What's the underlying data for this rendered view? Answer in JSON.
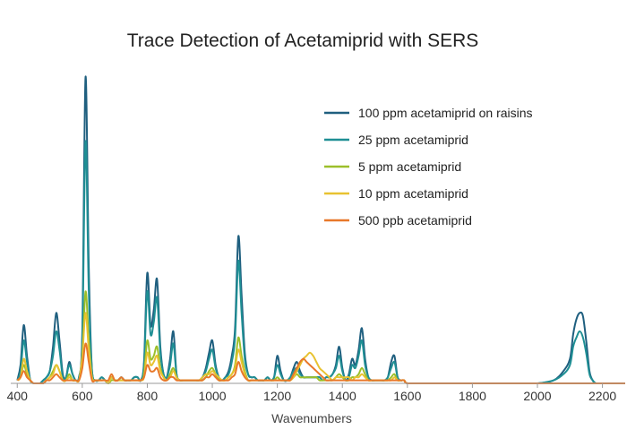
{
  "chart_data": {
    "type": "line",
    "title": "Trace Detection of Acetamiprid with SERS",
    "xlabel": "Wavenumbers",
    "ylabel": "",
    "xlim": [
      380,
      2270
    ],
    "ylim": [
      0,
      100
    ],
    "x_ticks": [
      400,
      600,
      800,
      1000,
      1200,
      1400,
      1600,
      1800,
      2000,
      2200
    ],
    "grid": false,
    "legend_position": "top-right",
    "x": [
      400,
      410,
      420,
      430,
      440,
      450,
      460,
      470,
      480,
      490,
      500,
      510,
      520,
      530,
      540,
      550,
      560,
      570,
      580,
      590,
      600,
      610,
      620,
      630,
      640,
      650,
      660,
      670,
      680,
      690,
      700,
      710,
      720,
      730,
      740,
      750,
      760,
      770,
      780,
      790,
      800,
      810,
      820,
      830,
      840,
      850,
      860,
      870,
      880,
      890,
      900,
      910,
      920,
      930,
      940,
      950,
      960,
      970,
      980,
      990,
      1000,
      1010,
      1020,
      1030,
      1040,
      1050,
      1060,
      1070,
      1080,
      1090,
      1100,
      1110,
      1120,
      1130,
      1140,
      1150,
      1160,
      1170,
      1180,
      1190,
      1200,
      1210,
      1220,
      1230,
      1240,
      1250,
      1260,
      1270,
      1280,
      1290,
      1300,
      1310,
      1320,
      1330,
      1340,
      1350,
      1360,
      1370,
      1380,
      1390,
      1400,
      1410,
      1420,
      1430,
      1440,
      1450,
      1460,
      1470,
      1480,
      1490,
      1500,
      1510,
      1520,
      1530,
      1540,
      1550,
      1560,
      1570,
      1580,
      1590,
      1600,
      1650,
      1700,
      1750,
      1800,
      1850,
      1900,
      1950,
      2000,
      2050,
      2080,
      2100,
      2110,
      2120,
      2130,
      2140,
      2150,
      2160,
      2170,
      2180,
      2200,
      2250,
      2270
    ],
    "series": [
      {
        "name": "100 ppm acetamiprid on raisins",
        "color": "#1f5f7f",
        "values": [
          1,
          6,
          19,
          9,
          1,
          0,
          0,
          0,
          1,
          2,
          4,
          12,
          23,
          14,
          3,
          2,
          7,
          3,
          1,
          2,
          17,
          100,
          38,
          4,
          1,
          1,
          2,
          1,
          0,
          2,
          1,
          1,
          2,
          1,
          1,
          1,
          2,
          2,
          1,
          7,
          36,
          19,
          24,
          34,
          12,
          3,
          2,
          8,
          17,
          3,
          1,
          1,
          1,
          1,
          1,
          1,
          1,
          2,
          5,
          10,
          14,
          6,
          2,
          1,
          2,
          4,
          9,
          18,
          48,
          29,
          10,
          3,
          2,
          2,
          1,
          1,
          1,
          2,
          1,
          2,
          9,
          4,
          1,
          1,
          2,
          5,
          7,
          4,
          2,
          2,
          2,
          2,
          2,
          2,
          1,
          2,
          2,
          3,
          6,
          12,
          5,
          1,
          3,
          8,
          6,
          11,
          18,
          8,
          2,
          1,
          1,
          1,
          1,
          1,
          2,
          7,
          9,
          2,
          1,
          1,
          0,
          0,
          0,
          0,
          0,
          0,
          0,
          0,
          0,
          1,
          4,
          8,
          16,
          21,
          23,
          22,
          14,
          4,
          1,
          0,
          0,
          0,
          0
        ]
      },
      {
        "name": "25 ppm acetamiprid",
        "color": "#1f8f94",
        "values": [
          1,
          4,
          14,
          7,
          1,
          0,
          0,
          0,
          1,
          2,
          4,
          9,
          17,
          11,
          2,
          2,
          6,
          3,
          1,
          2,
          14,
          79,
          30,
          4,
          1,
          1,
          2,
          1,
          0,
          2,
          1,
          1,
          2,
          1,
          1,
          1,
          2,
          2,
          1,
          6,
          30,
          16,
          20,
          28,
          10,
          3,
          2,
          6,
          13,
          3,
          1,
          1,
          1,
          1,
          1,
          1,
          1,
          2,
          4,
          8,
          11,
          5,
          2,
          1,
          2,
          3,
          7,
          15,
          40,
          23,
          8,
          3,
          2,
          2,
          1,
          1,
          1,
          2,
          1,
          2,
          6,
          3,
          1,
          1,
          2,
          4,
          5,
          3,
          2,
          2,
          2,
          2,
          2,
          2,
          1,
          2,
          2,
          3,
          5,
          9,
          4,
          1,
          2,
          6,
          5,
          9,
          14,
          6,
          2,
          1,
          1,
          1,
          1,
          1,
          2,
          5,
          7,
          2,
          1,
          1,
          0,
          0,
          0,
          0,
          0,
          0,
          0,
          0,
          0,
          1,
          3,
          6,
          12,
          15,
          17,
          15,
          10,
          3,
          1,
          0,
          0,
          0,
          0
        ]
      },
      {
        "name": "5 ppm acetamiprid",
        "color": "#9cbf2a",
        "values": [
          1,
          2,
          6,
          3,
          1,
          0,
          0,
          0,
          0,
          1,
          2,
          4,
          6,
          4,
          1,
          1,
          3,
          1,
          1,
          1,
          8,
          30,
          14,
          2,
          1,
          1,
          1,
          1,
          0,
          1,
          1,
          1,
          1,
          1,
          1,
          1,
          1,
          1,
          1,
          3,
          14,
          8,
          9,
          12,
          5,
          2,
          1,
          3,
          5,
          2,
          1,
          1,
          1,
          1,
          1,
          1,
          1,
          1,
          2,
          4,
          5,
          3,
          1,
          1,
          1,
          2,
          3,
          6,
          15,
          9,
          4,
          1,
          1,
          1,
          1,
          1,
          1,
          1,
          1,
          1,
          2,
          1,
          1,
          1,
          1,
          2,
          3,
          2,
          2,
          2,
          2,
          2,
          2,
          1,
          1,
          1,
          1,
          1,
          2,
          3,
          2,
          1,
          1,
          2,
          2,
          3,
          5,
          3,
          1,
          1,
          1,
          1,
          1,
          1,
          1,
          2,
          3,
          1,
          1,
          1,
          0,
          0,
          0,
          0,
          0,
          0,
          0,
          0,
          0,
          0,
          0,
          0,
          0,
          0,
          0,
          0,
          0,
          0,
          0,
          0,
          0,
          0,
          0
        ]
      },
      {
        "name": "10 ppm acetamiprid",
        "color": "#e8c230",
        "values": [
          1,
          2,
          8,
          4,
          1,
          0,
          0,
          0,
          0,
          1,
          2,
          3,
          6,
          4,
          1,
          1,
          2,
          1,
          1,
          1,
          9,
          23,
          11,
          2,
          1,
          1,
          1,
          1,
          0,
          2,
          1,
          1,
          1,
          1,
          1,
          1,
          1,
          1,
          1,
          2,
          10,
          6,
          7,
          9,
          4,
          2,
          1,
          2,
          4,
          2,
          1,
          1,
          1,
          1,
          1,
          1,
          1,
          2,
          3,
          3,
          4,
          3,
          2,
          1,
          1,
          2,
          3,
          5,
          11,
          7,
          3,
          1,
          1,
          1,
          1,
          1,
          1,
          1,
          1,
          1,
          1,
          1,
          1,
          1,
          1,
          2,
          4,
          6,
          8,
          9,
          10,
          9,
          7,
          5,
          4,
          3,
          2,
          1,
          2,
          2,
          2,
          2,
          2,
          1,
          2,
          2,
          3,
          2,
          1,
          1,
          1,
          1,
          1,
          1,
          1,
          1,
          2,
          1,
          1,
          1,
          0,
          0,
          0,
          0,
          0,
          0,
          0,
          0,
          0,
          0,
          0,
          0,
          0,
          0,
          0,
          0,
          0,
          0,
          0,
          0,
          0,
          0,
          0
        ]
      },
      {
        "name": "500 ppb acetamiprid",
        "color": "#e8782a",
        "values": [
          1,
          2,
          4,
          2,
          1,
          0,
          0,
          0,
          0,
          1,
          1,
          2,
          3,
          2,
          1,
          1,
          1,
          1,
          1,
          1,
          5,
          13,
          7,
          1,
          1,
          1,
          1,
          1,
          1,
          3,
          1,
          1,
          2,
          1,
          1,
          1,
          1,
          1,
          1,
          2,
          6,
          4,
          4,
          5,
          2,
          1,
          1,
          2,
          2,
          1,
          1,
          1,
          1,
          1,
          1,
          1,
          1,
          1,
          2,
          2,
          3,
          2,
          1,
          1,
          1,
          1,
          2,
          3,
          7,
          4,
          2,
          1,
          1,
          1,
          1,
          1,
          1,
          1,
          1,
          1,
          1,
          1,
          1,
          1,
          1,
          3,
          5,
          7,
          8,
          7,
          6,
          5,
          4,
          3,
          2,
          1,
          1,
          1,
          1,
          1,
          1,
          1,
          1,
          1,
          1,
          1,
          1,
          1,
          1,
          1,
          1,
          1,
          1,
          1,
          1,
          1,
          1,
          1,
          1,
          1,
          0,
          0,
          0,
          0,
          0,
          0,
          0,
          0,
          0,
          0,
          0,
          0,
          0,
          0,
          0,
          0,
          0,
          0,
          0,
          0,
          0,
          0,
          0
        ]
      }
    ]
  }
}
